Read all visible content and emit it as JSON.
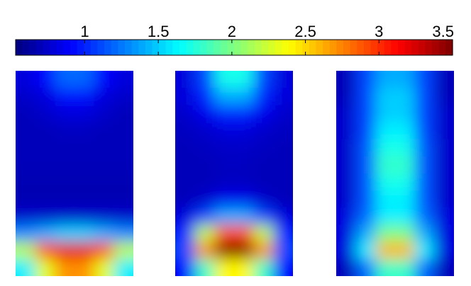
{
  "chart_data": {
    "type": "heatmap",
    "zlim": [
      0.53,
      3.5
    ],
    "zticks": [
      1,
      1.5,
      2,
      2.5,
      3,
      3.5
    ],
    "colormap": "jet",
    "panels": [
      {
        "values": [
          [
            0.8,
            0.9,
            1.2,
            1.2,
            0.9,
            0.8
          ],
          [
            0.75,
            0.8,
            0.95,
            0.95,
            0.8,
            0.75
          ],
          [
            0.7,
            0.75,
            0.8,
            0.8,
            0.75,
            0.7
          ],
          [
            0.7,
            0.7,
            0.72,
            0.72,
            0.7,
            0.7
          ],
          [
            0.7,
            0.7,
            0.7,
            0.7,
            0.7,
            0.7
          ],
          [
            0.7,
            0.7,
            0.7,
            0.7,
            0.7,
            0.7
          ],
          [
            0.68,
            0.68,
            0.68,
            0.68,
            0.68,
            0.68
          ],
          [
            0.68,
            0.68,
            0.68,
            0.68,
            0.68,
            0.68
          ],
          [
            0.75,
            0.75,
            0.75,
            0.75,
            0.75,
            0.75
          ],
          [
            1.3,
            1.4,
            1.5,
            1.5,
            1.4,
            1.3
          ],
          [
            2.2,
            2.9,
            3.2,
            3.2,
            2.9,
            2.2
          ],
          [
            1.6,
            2.3,
            2.7,
            2.7,
            2.3,
            1.6
          ]
        ]
      },
      {
        "values": [
          [
            0.8,
            1.1,
            1.7,
            1.7,
            1.1,
            0.8
          ],
          [
            0.8,
            1.0,
            1.4,
            1.4,
            1.0,
            0.8
          ],
          [
            0.75,
            0.85,
            1.0,
            1.0,
            0.85,
            0.75
          ],
          [
            0.72,
            0.75,
            0.8,
            0.8,
            0.75,
            0.72
          ],
          [
            0.7,
            0.72,
            0.74,
            0.74,
            0.72,
            0.7
          ],
          [
            0.7,
            0.7,
            0.72,
            0.72,
            0.7,
            0.7
          ],
          [
            0.7,
            0.7,
            0.72,
            0.72,
            0.7,
            0.7
          ],
          [
            0.7,
            0.75,
            0.85,
            0.85,
            0.75,
            0.7
          ],
          [
            0.8,
            1.1,
            1.4,
            1.4,
            1.1,
            0.8
          ],
          [
            1.0,
            2.2,
            2.9,
            2.9,
            2.2,
            1.0
          ],
          [
            1.1,
            2.7,
            3.5,
            3.5,
            2.7,
            1.1
          ],
          [
            0.9,
            1.8,
            2.4,
            2.4,
            1.8,
            0.9
          ]
        ]
      },
      {
        "values": [
          [
            0.7,
            1.1,
            1.4,
            1.4,
            1.1,
            0.7
          ],
          [
            0.7,
            1.1,
            1.5,
            1.5,
            1.1,
            0.7
          ],
          [
            0.75,
            1.1,
            1.5,
            1.5,
            1.1,
            0.75
          ],
          [
            0.75,
            1.1,
            1.6,
            1.6,
            1.1,
            0.75
          ],
          [
            0.75,
            1.15,
            1.7,
            1.7,
            1.15,
            0.75
          ],
          [
            0.75,
            1.15,
            1.8,
            1.8,
            1.15,
            0.75
          ],
          [
            0.75,
            1.15,
            1.7,
            1.7,
            1.15,
            0.75
          ],
          [
            0.75,
            1.15,
            1.6,
            1.6,
            1.15,
            0.75
          ],
          [
            0.8,
            1.2,
            1.6,
            1.6,
            1.2,
            0.8
          ],
          [
            0.8,
            1.4,
            2.0,
            2.0,
            1.4,
            0.8
          ],
          [
            0.8,
            1.6,
            2.6,
            2.6,
            1.6,
            0.8
          ],
          [
            0.7,
            1.2,
            1.8,
            1.8,
            1.2,
            0.7
          ]
        ]
      }
    ]
  }
}
